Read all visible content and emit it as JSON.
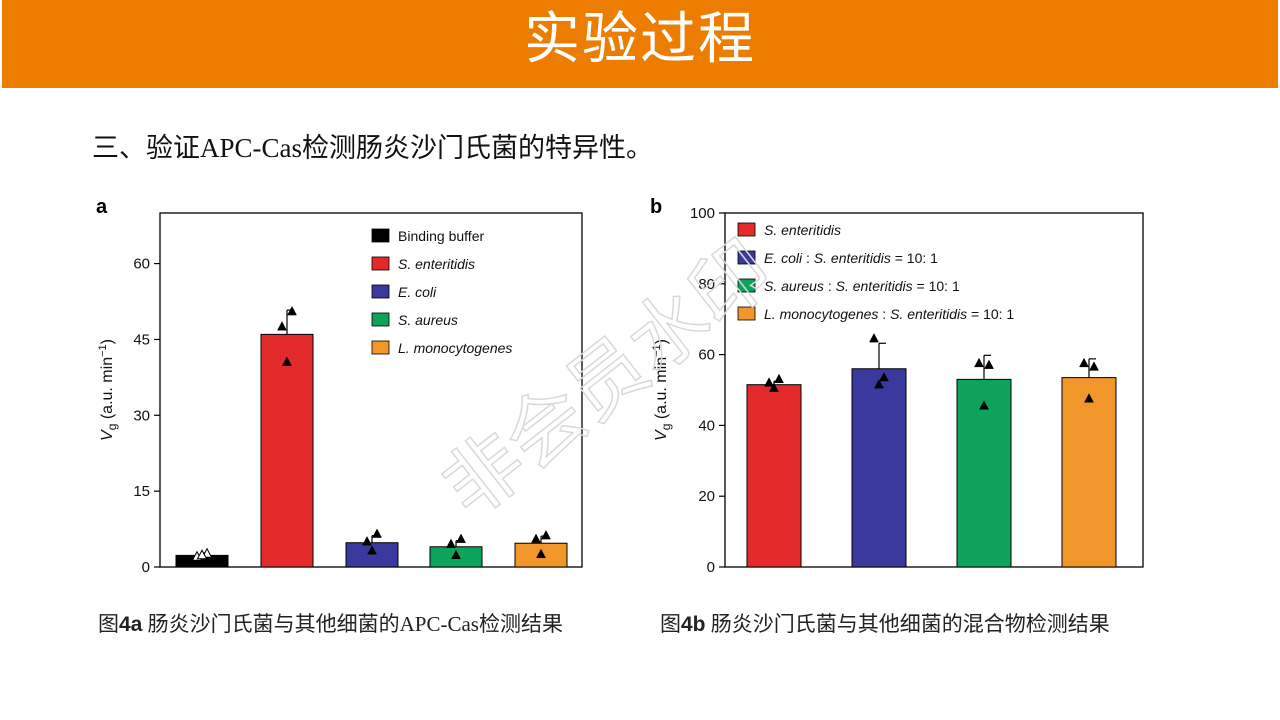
{
  "header": {
    "title": "实验过程"
  },
  "subtitle": "三、验证APC-Cas检测肠炎沙门氏菌的特异性。",
  "watermark": "非会员水印",
  "captions": {
    "a_prefix": "图",
    "a_bold": "4a",
    "a_text": " 肠炎沙门氏菌与其他细菌的APC-Cas检测结果",
    "b_prefix": "图",
    "b_bold": "4b",
    "b_text": " 肠炎沙门氏菌与其他细菌的混合物检测结果"
  },
  "chart_data": [
    {
      "panel": "a",
      "type": "bar",
      "ylabel_main": "V",
      "ylabel_sub": "g",
      "ylabel_rest": " (a.u. min",
      "ylabel_sup": "−1",
      "ylabel_end": ")",
      "ylim": [
        0,
        70
      ],
      "yticks": [
        0,
        15,
        30,
        45,
        60
      ],
      "legend_position": "top-right",
      "categories": [
        {
          "name": "Binding buffer",
          "italic": false,
          "color": "#000000",
          "value": 2.3,
          "error": 0.5,
          "points": [
            2.0,
            2.6,
            2.3
          ],
          "hollow": true
        },
        {
          "name": "S. enteritidis",
          "italic": true,
          "color": "#e32b2b",
          "value": 46.0,
          "error": 4.8,
          "points": [
            47.5,
            50.5,
            40.5
          ],
          "hollow": false
        },
        {
          "name": "E. coli",
          "italic": true,
          "color": "#3a3a9e",
          "value": 4.8,
          "error": 1.4,
          "points": [
            5.0,
            6.5,
            3.2
          ],
          "hollow": false
        },
        {
          "name": "S. aureus",
          "italic": true,
          "color": "#0ea35a",
          "value": 4.0,
          "error": 1.2,
          "points": [
            4.5,
            5.5,
            2.3
          ],
          "hollow": false
        },
        {
          "name": "L. monocytogenes",
          "italic": true,
          "color": "#f0962b",
          "value": 4.7,
          "error": 1.4,
          "points": [
            5.5,
            6.2,
            2.5
          ],
          "hollow": false
        }
      ]
    },
    {
      "panel": "b",
      "type": "bar",
      "ylabel_main": "V",
      "ylabel_sub": "g",
      "ylabel_rest": " (a.u. min",
      "ylabel_sup": "−1",
      "ylabel_end": ")",
      "ylim": [
        0,
        100
      ],
      "yticks": [
        0,
        20,
        40,
        60,
        80,
        100
      ],
      "legend_position": "top-left",
      "categories": [
        {
          "legend": [
            {
              "t": "S. enteritidis",
              "i": true
            }
          ],
          "color": "#e32b2b",
          "value": 51.5,
          "error": 1.0,
          "points": [
            52.0,
            53.0,
            50.5
          ]
        },
        {
          "legend": [
            {
              "t": "E. coli",
              "i": true
            },
            {
              "t": " : ",
              "i": false
            },
            {
              "t": "S. enteritidis",
              "i": true
            },
            {
              "t": " = 10: 1",
              "i": false
            }
          ],
          "color": "#3a3a9e",
          "value": 56.0,
          "error": 7.2,
          "points": [
            64.5,
            53.5,
            51.5
          ]
        },
        {
          "legend": [
            {
              "t": "S. aureus",
              "i": true
            },
            {
              "t": " : ",
              "i": false
            },
            {
              "t": "S. enteritidis",
              "i": true
            },
            {
              "t": " = 10: 1",
              "i": false
            }
          ],
          "color": "#0ea35a",
          "value": 53.0,
          "error": 6.8,
          "points": [
            57.5,
            57.0,
            45.5
          ]
        },
        {
          "legend": [
            {
              "t": "L. monocytogenes",
              "i": true
            },
            {
              "t": " : ",
              "i": false
            },
            {
              "t": "S. enteritidis",
              "i": true
            },
            {
              "t": " = 10: 1",
              "i": false
            }
          ],
          "color": "#f0962b",
          "value": 53.5,
          "error": 5.3,
          "points": [
            57.5,
            56.5,
            47.5
          ]
        }
      ]
    }
  ]
}
